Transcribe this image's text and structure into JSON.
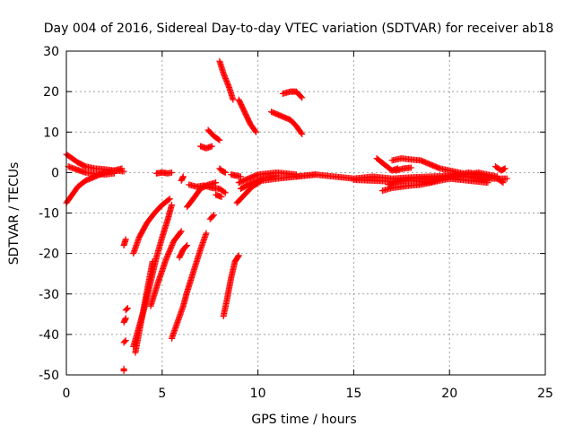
{
  "chart_data": {
    "type": "scatter",
    "title": "Day 004 of 2016, Sidereal Day-to-day VTEC variation (SDTVAR) for receiver ab18",
    "xlabel": "GPS time / hours",
    "ylabel": "SDTVAR / TECUs",
    "xlim": [
      0,
      25
    ],
    "ylim": [
      -50,
      30
    ],
    "x_ticks": [
      0,
      5,
      10,
      15,
      20,
      25
    ],
    "y_ticks": [
      30,
      20,
      10,
      0,
      -10,
      -20,
      -30,
      -40,
      -50
    ],
    "x_tick_labels": [
      "0",
      "5",
      "10",
      "15",
      "20",
      "25"
    ],
    "y_tick_labels": [
      "30",
      "20",
      "10",
      "0",
      "-10",
      "-20",
      "-30",
      "-40",
      "-50"
    ],
    "grid": true,
    "marker": "+",
    "color": "#ff0000",
    "series": [
      {
        "segments": [
          [
            [
              0.0,
              4.5
            ],
            [
              0.3,
              3.5
            ],
            [
              0.6,
              2.5
            ],
            [
              1.0,
              1.5
            ],
            [
              1.5,
              1.0
            ],
            [
              2.0,
              0.8
            ],
            [
              2.5,
              0.5
            ],
            [
              2.9,
              1.0
            ]
          ],
          [
            [
              0.0,
              -7.5
            ],
            [
              0.3,
              -5.5
            ],
            [
              0.6,
              -3.5
            ],
            [
              1.0,
              -2.0
            ],
            [
              1.5,
              -1.0
            ],
            [
              2.0,
              0.0
            ],
            [
              2.5,
              0.5
            ],
            [
              3.0,
              0.3
            ]
          ],
          [
            [
              0.1,
              1.5
            ],
            [
              0.5,
              0.8
            ],
            [
              1.0,
              0.0
            ],
            [
              1.5,
              -0.3
            ],
            [
              2.0,
              -0.5
            ],
            [
              2.5,
              -0.2
            ]
          ],
          [
            [
              3.0,
              -49.0
            ],
            [
              3.0,
              -48.5
            ]
          ],
          [
            [
              3.1,
              -36.0
            ],
            [
              3.0,
              -37.0
            ]
          ],
          [
            [
              3.0,
              -42.0
            ],
            [
              3.1,
              -41.5
            ]
          ],
          [
            [
              3.2,
              -33.5
            ],
            [
              3.1,
              -34.0
            ]
          ],
          [
            [
              3.0,
              -18.0
            ],
            [
              3.1,
              -16.5
            ]
          ],
          [
            [
              3.5,
              -20.0
            ],
            [
              3.8,
              -16.0
            ],
            [
              4.2,
              -12.5
            ],
            [
              4.6,
              -10.0
            ],
            [
              5.0,
              -8.0
            ],
            [
              5.4,
              -6.5
            ]
          ],
          [
            [
              3.5,
              -43.0
            ],
            [
              3.8,
              -38.0
            ],
            [
              4.1,
              -33.0
            ],
            [
              4.4,
              -27.0
            ],
            [
              4.7,
              -21.0
            ],
            [
              5.0,
              -16.0
            ],
            [
              5.3,
              -11.5
            ],
            [
              5.5,
              -8.0
            ]
          ],
          [
            [
              3.6,
              -44.5
            ],
            [
              3.9,
              -37.0
            ],
            [
              4.2,
              -29.5
            ],
            [
              4.5,
              -22.0
            ]
          ],
          [
            [
              4.4,
              -33.0
            ],
            [
              4.8,
              -27.0
            ],
            [
              5.2,
              -21.5
            ],
            [
              5.6,
              -17.0
            ],
            [
              6.0,
              -14.5
            ]
          ],
          [
            [
              4.7,
              -0.2
            ],
            [
              5.0,
              0.0
            ],
            [
              5.3,
              -0.2
            ],
            [
              5.5,
              0.0
            ]
          ],
          [
            [
              5.5,
              -41.0
            ],
            [
              5.8,
              -37.0
            ],
            [
              6.1,
              -33.0
            ],
            [
              6.3,
              -29.5
            ],
            [
              6.6,
              -25.0
            ],
            [
              7.0,
              -19.0
            ],
            [
              7.3,
              -15.0
            ]
          ],
          [
            [
              5.9,
              -21.0
            ],
            [
              6.1,
              -19.0
            ],
            [
              6.3,
              -18.0
            ]
          ],
          [
            [
              6.1,
              -1.0
            ],
            [
              6.0,
              -2.0
            ]
          ],
          [
            [
              6.4,
              -3.0
            ],
            [
              6.8,
              -3.5
            ],
            [
              7.2,
              -3.2
            ],
            [
              7.6,
              -3.8
            ],
            [
              8.0,
              -4.0
            ],
            [
              8.3,
              -5.0
            ]
          ],
          [
            [
              6.3,
              -8.5
            ],
            [
              6.7,
              -6.0
            ],
            [
              7.0,
              -4.0
            ],
            [
              7.4,
              -3.0
            ],
            [
              7.8,
              -2.5
            ]
          ],
          [
            [
              7.0,
              6.5
            ],
            [
              7.3,
              6.0
            ],
            [
              7.6,
              6.5
            ]
          ],
          [
            [
              7.4,
              10.5
            ],
            [
              7.7,
              9.0
            ],
            [
              8.0,
              8.0
            ]
          ],
          [
            [
              7.5,
              -11.5
            ],
            [
              7.7,
              -10.5
            ]
          ],
          [
            [
              7.8,
              -5.5
            ],
            [
              8.1,
              -6.0
            ]
          ],
          [
            [
              8.0,
              1.0
            ],
            [
              8.1,
              0.5
            ],
            [
              8.3,
              0.0
            ]
          ],
          [
            [
              8.0,
              27.5
            ],
            [
              8.2,
              24.5
            ],
            [
              8.5,
              21.0
            ],
            [
              8.7,
              18.0
            ]
          ],
          [
            [
              8.2,
              -35.5
            ],
            [
              8.4,
              -31.0
            ],
            [
              8.6,
              -26.0
            ],
            [
              8.8,
              -22.0
            ],
            [
              9.0,
              -20.5
            ]
          ],
          [
            [
              8.6,
              -0.5
            ],
            [
              8.9,
              -0.8
            ],
            [
              9.1,
              -1.0
            ]
          ],
          [
            [
              8.9,
              -7.5
            ],
            [
              9.3,
              -5.5
            ],
            [
              9.7,
              -3.5
            ],
            [
              10.2,
              -2.0
            ],
            [
              11.0,
              -1.5
            ],
            [
              12.0,
              -1.0
            ],
            [
              13.0,
              -0.5
            ]
          ],
          [
            [
              9.0,
              -2.5
            ],
            [
              9.5,
              -1.5
            ],
            [
              10.0,
              -0.5
            ],
            [
              11.0,
              0.0
            ],
            [
              12.0,
              -0.5
            ]
          ],
          [
            [
              9.1,
              -4.0
            ],
            [
              9.5,
              -3.0
            ],
            [
              10.2,
              -1.5
            ],
            [
              11.0,
              -0.8
            ]
          ],
          [
            [
              9.0,
              18.0
            ],
            [
              9.3,
              15.0
            ],
            [
              9.6,
              12.0
            ],
            [
              9.9,
              10.0
            ]
          ],
          [
            [
              10.7,
              15.0
            ],
            [
              11.2,
              14.0
            ],
            [
              11.7,
              13.0
            ],
            [
              12.0,
              11.5
            ],
            [
              12.3,
              9.5
            ]
          ],
          [
            [
              11.3,
              19.5
            ],
            [
              11.7,
              20.0
            ],
            [
              12.0,
              20.0
            ],
            [
              12.3,
              18.5
            ]
          ],
          [
            [
              12.0,
              -1.0
            ],
            [
              13.0,
              -0.5
            ],
            [
              14.0,
              -1.0
            ],
            [
              15.0,
              -1.5
            ],
            [
              16.0,
              -1.0
            ],
            [
              17.0,
              -1.5
            ],
            [
              18.0,
              -1.2
            ],
            [
              19.0,
              -1.0
            ],
            [
              20.0,
              -0.8
            ],
            [
              21.0,
              -1.0
            ],
            [
              22.0,
              -1.5
            ],
            [
              23.0,
              -1.5
            ]
          ],
          [
            [
              15.0,
              -1.8
            ],
            [
              16.0,
              -2.0
            ],
            [
              17.0,
              -2.2
            ],
            [
              18.0,
              -2.0
            ],
            [
              19.0,
              -2.5
            ],
            [
              20.0,
              -1.5
            ],
            [
              21.0,
              -2.0
            ],
            [
              22.0,
              -2.5
            ]
          ],
          [
            [
              16.2,
              3.5
            ],
            [
              16.6,
              2.0
            ],
            [
              17.0,
              0.5
            ],
            [
              17.3,
              1.0
            ]
          ],
          [
            [
              16.5,
              -4.5
            ],
            [
              17.0,
              -3.8
            ],
            [
              17.5,
              -3.5
            ],
            [
              18.0,
              -3.2
            ],
            [
              18.5,
              -3.0
            ],
            [
              19.0,
              -2.5
            ],
            [
              19.5,
              -1.5
            ],
            [
              20.0,
              -1.0
            ],
            [
              20.5,
              -0.5
            ],
            [
              21.0,
              0.0
            ],
            [
              21.5,
              -0.5
            ],
            [
              22.0,
              -1.0
            ],
            [
              22.5,
              -1.5
            ],
            [
              22.8,
              -2.5
            ]
          ],
          [
            [
              16.8,
              -3.0
            ],
            [
              17.5,
              -2.0
            ],
            [
              18.0,
              -1.5
            ],
            [
              18.5,
              -1.5
            ],
            [
              19.0,
              -1.5
            ],
            [
              19.5,
              -1.2
            ],
            [
              20.0,
              -1.0
            ],
            [
              20.5,
              -0.8
            ],
            [
              21.0,
              -1.0
            ],
            [
              21.5,
              -1.5
            ],
            [
              22.0,
              -2.0
            ]
          ],
          [
            [
              17.0,
              3.0
            ],
            [
              17.5,
              3.5
            ],
            [
              18.0,
              3.2
            ],
            [
              18.5,
              3.0
            ],
            [
              19.0,
              2.0
            ],
            [
              19.5,
              1.0
            ],
            [
              20.0,
              0.5
            ],
            [
              20.5,
              0.0
            ],
            [
              21.0,
              -0.5
            ],
            [
              21.5,
              0.0
            ],
            [
              22.0,
              -0.5
            ],
            [
              22.5,
              -1.0
            ]
          ],
          [
            [
              17.2,
              0.5
            ],
            [
              17.6,
              1.0
            ],
            [
              18.0,
              1.2
            ]
          ],
          [
            [
              22.4,
              1.5
            ],
            [
              22.7,
              0.5
            ],
            [
              22.9,
              1.0
            ]
          ]
        ]
      }
    ]
  }
}
